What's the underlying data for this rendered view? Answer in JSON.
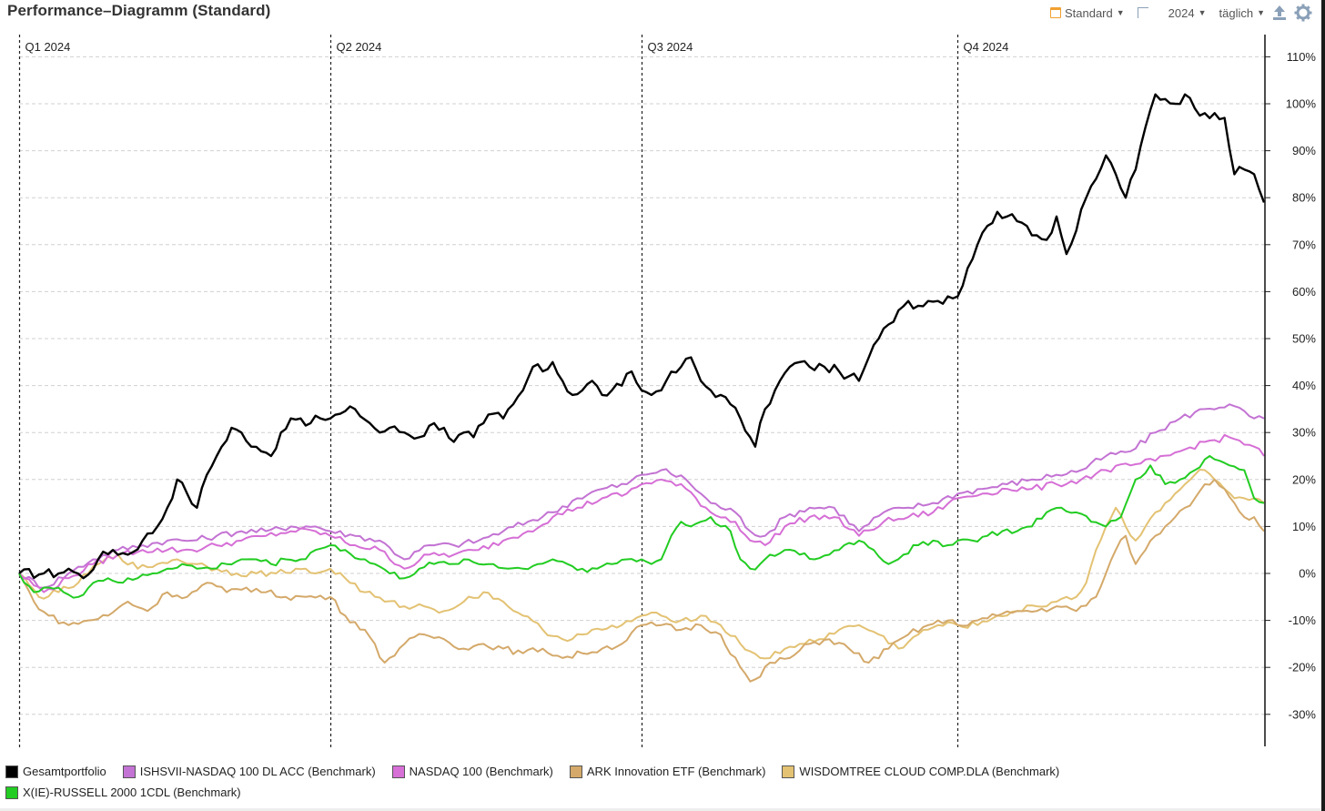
{
  "title": "Performance–Diagramm (Standard)",
  "toolbar": {
    "preset_label": "Standard",
    "year_label": "2024",
    "interval_label": "täglich",
    "icons": [
      "calendar-icon",
      "reset-zoom-icon",
      "share-icon",
      "gear-icon"
    ]
  },
  "chart_data": {
    "type": "line",
    "x_unit": "trading day index (0 = start of 2024, 252 = end of 2024)",
    "ylim": [
      -33,
      113
    ],
    "yticks": [
      "110%",
      "100%",
      "90%",
      "80%",
      "70%",
      "60%",
      "50%",
      "40%",
      "30%",
      "20%",
      "10%",
      "0%",
      "-10%",
      "-20%",
      "-30%"
    ],
    "ytick_values": [
      110,
      100,
      90,
      80,
      70,
      60,
      50,
      40,
      30,
      20,
      10,
      0,
      -10,
      -20,
      -30
    ],
    "quarters": [
      {
        "label": "Q1 2024",
        "day": 0
      },
      {
        "label": "Q2 2024",
        "day": 63
      },
      {
        "label": "Q3 2024",
        "day": 126
      },
      {
        "label": "Q4 2024",
        "day": 190
      }
    ],
    "grid": true,
    "legend_position": "bottom",
    "series": [
      {
        "name": "Gesamtportfolio",
        "color": "#000000",
        "x": [
          0,
          5,
          8,
          10,
          13,
          16,
          19,
          22,
          25,
          28,
          30,
          32,
          34,
          36,
          38,
          40,
          41,
          43,
          45,
          47,
          49,
          51,
          53,
          55,
          57,
          59,
          61,
          63,
          65,
          68,
          71,
          73,
          75,
          78,
          81,
          84,
          86,
          88,
          90,
          92,
          94,
          96,
          98,
          100,
          102,
          104,
          106,
          108,
          110,
          112,
          114,
          116,
          118,
          120,
          122,
          124,
          126,
          128,
          131,
          134,
          136,
          138,
          140,
          142,
          144,
          146,
          148,
          149,
          151,
          153,
          156,
          158,
          160,
          163,
          166,
          168,
          170,
          172,
          174,
          176,
          178,
          180,
          182,
          184,
          186,
          188,
          190,
          192,
          194,
          196,
          198,
          200,
          202,
          204,
          206,
          208,
          210,
          212,
          214,
          216,
          218,
          220,
          222,
          224,
          226,
          228,
          230,
          232,
          234,
          236,
          238,
          240,
          242,
          244,
          246,
          248,
          250,
          252
        ],
        "y": [
          0,
          0,
          0,
          1,
          -1,
          3,
          5,
          4,
          7,
          10,
          14,
          20,
          17,
          14,
          21,
          25,
          27,
          31,
          30,
          27,
          26,
          25,
          30,
          33,
          33,
          32,
          33,
          33,
          34,
          35,
          32,
          30,
          31,
          30,
          29,
          32,
          31,
          28,
          30,
          29,
          32,
          34,
          33,
          36,
          39,
          44,
          43,
          45,
          41,
          38,
          39,
          41,
          38,
          39,
          40,
          43,
          39,
          38,
          41,
          44,
          46,
          41,
          39,
          38,
          36,
          33,
          29,
          27,
          35,
          39,
          44,
          45,
          44,
          44,
          43,
          42,
          41,
          46,
          50,
          53,
          56,
          58,
          57,
          58,
          58,
          59,
          59,
          65,
          70,
          74,
          77,
          76,
          75,
          74,
          72,
          71,
          76,
          68,
          73,
          80,
          84,
          89,
          85,
          80,
          86,
          95,
          102,
          101,
          100,
          102,
          99,
          98,
          98,
          97,
          85,
          86,
          85,
          79
        ]
      },
      {
        "name": "ISHSVII-NASDAQ 100 DL ACC (Benchmark)",
        "color": "#c373d3",
        "x": [
          0,
          5,
          10,
          15,
          20,
          25,
          30,
          35,
          40,
          45,
          50,
          55,
          60,
          63,
          68,
          73,
          78,
          83,
          88,
          93,
          98,
          103,
          108,
          113,
          118,
          123,
          126,
          130,
          135,
          140,
          145,
          148,
          151,
          155,
          160,
          165,
          170,
          175,
          180,
          185,
          190,
          195,
          200,
          205,
          210,
          215,
          220,
          225,
          230,
          235,
          240,
          245,
          250,
          252
        ],
        "y": [
          0,
          -3,
          0,
          3,
          5,
          6,
          7,
          7,
          8,
          9,
          9,
          10,
          10,
          9,
          8,
          7,
          3,
          6,
          6,
          7,
          9,
          11,
          13,
          16,
          18,
          19,
          21,
          22,
          20,
          15,
          13,
          9,
          8,
          12,
          14,
          14,
          9,
          13,
          14,
          15,
          17,
          18,
          19,
          20,
          21,
          22,
          25,
          26,
          30,
          33,
          35,
          36,
          33,
          33
        ]
      },
      {
        "name": "NASDAQ 100 (Benchmark)",
        "color": "#d66fd6",
        "x": [
          0,
          5,
          10,
          15,
          20,
          25,
          30,
          35,
          40,
          45,
          50,
          55,
          60,
          63,
          68,
          73,
          78,
          83,
          88,
          93,
          98,
          103,
          108,
          113,
          118,
          123,
          126,
          130,
          135,
          140,
          145,
          148,
          151,
          155,
          160,
          165,
          170,
          175,
          180,
          185,
          190,
          195,
          200,
          205,
          210,
          215,
          220,
          225,
          230,
          235,
          240,
          245,
          250,
          252
        ],
        "y": [
          0,
          -4,
          -1,
          2,
          4,
          5,
          5,
          5,
          6,
          7,
          8,
          9,
          9,
          8,
          6,
          5,
          1,
          4,
          4,
          5,
          7,
          9,
          12,
          14,
          16,
          17,
          19,
          20,
          18,
          13,
          11,
          7,
          6,
          10,
          12,
          12,
          8,
          11,
          12,
          13,
          16,
          17,
          18,
          18,
          19,
          20,
          22,
          23,
          24,
          26,
          28,
          29,
          27,
          25
        ]
      },
      {
        "name": "ARK Innovation ETF (Benchmark)",
        "color": "#d4a96a",
        "x": [
          0,
          3,
          6,
          10,
          14,
          18,
          22,
          26,
          30,
          34,
          38,
          42,
          46,
          50,
          54,
          58,
          63,
          66,
          70,
          74,
          78,
          82,
          86,
          90,
          94,
          98,
          102,
          106,
          110,
          114,
          118,
          122,
          126,
          130,
          134,
          138,
          142,
          146,
          148,
          150,
          152,
          156,
          160,
          164,
          168,
          172,
          176,
          180,
          184,
          188,
          190,
          194,
          198,
          202,
          206,
          210,
          214,
          218,
          220,
          222,
          224,
          226,
          228,
          230,
          232,
          234,
          236,
          238,
          240,
          242,
          244,
          246,
          248,
          250,
          252
        ],
        "y": [
          0,
          -6,
          -9,
          -11,
          -10,
          -9,
          -6,
          -8,
          -4,
          -5,
          -2,
          -4,
          -3,
          -4,
          -5,
          -5,
          -5,
          -9,
          -12,
          -19,
          -15,
          -13,
          -14,
          -16,
          -15,
          -16,
          -17,
          -16,
          -18,
          -17,
          -16,
          -15,
          -11,
          -11,
          -12,
          -11,
          -13,
          -20,
          -23,
          -22,
          -19,
          -18,
          -15,
          -14,
          -16,
          -19,
          -16,
          -13,
          -11,
          -10,
          -11,
          -10,
          -9,
          -8,
          -8,
          -7,
          -8,
          -5,
          0,
          5,
          8,
          2,
          5,
          8,
          10,
          12,
          14,
          16,
          19,
          20,
          18,
          15,
          12,
          12,
          9
        ]
      },
      {
        "name": "WISDOMTREE CLOUD COMP.DLA (Benchmark)",
        "color": "#e3c273",
        "x": [
          0,
          4,
          8,
          12,
          16,
          20,
          24,
          28,
          32,
          36,
          40,
          44,
          48,
          52,
          56,
          60,
          63,
          66,
          70,
          74,
          78,
          82,
          86,
          90,
          94,
          98,
          102,
          106,
          110,
          114,
          118,
          122,
          126,
          130,
          134,
          138,
          142,
          146,
          150,
          154,
          158,
          162,
          166,
          170,
          174,
          178,
          182,
          186,
          190,
          194,
          198,
          202,
          206,
          210,
          212,
          214,
          216,
          218,
          220,
          222,
          224,
          226,
          228,
          230,
          232,
          234,
          236,
          238,
          240,
          242,
          244,
          246,
          248,
          250,
          252
        ],
        "y": [
          0,
          -5,
          -4,
          -2,
          2,
          4,
          1,
          2,
          3,
          2,
          1,
          0,
          0,
          0,
          1,
          0,
          1,
          -1,
          -4,
          -6,
          -7,
          -7,
          -8,
          -6,
          -4,
          -6,
          -9,
          -12,
          -14,
          -13,
          -12,
          -11,
          -9,
          -9,
          -10,
          -9,
          -11,
          -15,
          -18,
          -17,
          -15,
          -14,
          -12,
          -11,
          -13,
          -16,
          -13,
          -11,
          -11,
          -11,
          -9,
          -8,
          -7,
          -6,
          -5,
          -5,
          -2,
          5,
          10,
          14,
          10,
          7,
          10,
          13,
          15,
          17,
          19,
          21,
          22,
          20,
          18,
          16,
          16,
          16,
          15
        ]
      },
      {
        "name": "X(IE)-RUSSELL 2000 1CDL (Benchmark)",
        "color": "#22cc22",
        "x": [
          0,
          3,
          6,
          9,
          12,
          15,
          18,
          21,
          24,
          27,
          30,
          33,
          36,
          39,
          42,
          45,
          48,
          51,
          54,
          57,
          60,
          63,
          66,
          69,
          72,
          75,
          78,
          81,
          84,
          87,
          90,
          93,
          96,
          99,
          102,
          105,
          108,
          111,
          114,
          117,
          120,
          123,
          126,
          128,
          130,
          132,
          134,
          136,
          138,
          140,
          142,
          144,
          146,
          148,
          150,
          152,
          155,
          158,
          161,
          164,
          167,
          170,
          173,
          176,
          179,
          182,
          185,
          188,
          190,
          193,
          196,
          199,
          202,
          205,
          208,
          211,
          214,
          217,
          220,
          223,
          226,
          229,
          232,
          235,
          238,
          241,
          243,
          245,
          248,
          250,
          252
        ],
        "y": [
          0,
          -4,
          -3,
          -4,
          -5,
          -2,
          -1,
          -2,
          -1,
          0,
          1,
          2,
          1,
          1,
          2,
          3,
          3,
          2,
          3,
          3,
          5,
          6,
          5,
          3,
          2,
          0,
          -1,
          1,
          2,
          2,
          3,
          2,
          2,
          1,
          1,
          2,
          3,
          2,
          1,
          1,
          2,
          3,
          3,
          2,
          3,
          8,
          11,
          10,
          11,
          12,
          10,
          9,
          3,
          1,
          2,
          4,
          5,
          4,
          3,
          4,
          6,
          7,
          5,
          2,
          4,
          6,
          7,
          6,
          7,
          7,
          8,
          9,
          9,
          10,
          13,
          14,
          13,
          11,
          10,
          12,
          20,
          23,
          19,
          20,
          22,
          25,
          24,
          23,
          22,
          16,
          15
        ]
      }
    ]
  },
  "legend": {
    "row1": [
      {
        "label": "Gesamtportfolio",
        "color": "#000000"
      },
      {
        "label": "ISHSVII-NASDAQ 100 DL ACC (Benchmark)",
        "color": "#c373d3"
      },
      {
        "label": "NASDAQ 100 (Benchmark)",
        "color": "#d66fd6"
      },
      {
        "label": "ARK Innovation ETF (Benchmark)",
        "color": "#d4a96a"
      },
      {
        "label": "WISDOMTREE CLOUD COMP.DLA (Benchmark)",
        "color": "#e3c273"
      }
    ],
    "row2": [
      {
        "label": "X(IE)-RUSSELL 2000 1CDL (Benchmark)",
        "color": "#22cc22"
      }
    ]
  }
}
